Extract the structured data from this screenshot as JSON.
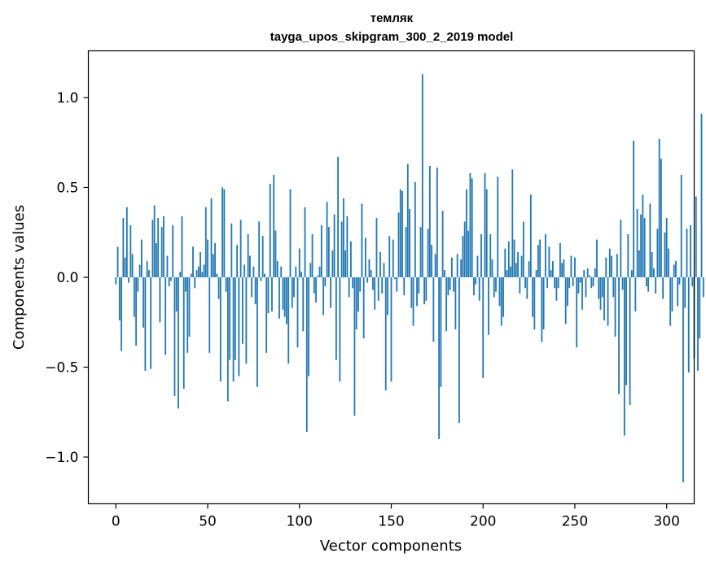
{
  "chart_data": {
    "type": "bar",
    "title_line1": "темляк",
    "title_line2": "tayga_upos_skipgram_300_2_2019 model",
    "xlabel": "Vector components",
    "ylabel": "Components values",
    "xlim": [
      -15,
      315
    ],
    "ylim": [
      -1.26,
      1.26
    ],
    "xticks": [
      0,
      50,
      100,
      150,
      200,
      250,
      300
    ],
    "xtick_labels": [
      "0",
      "50",
      "100",
      "150",
      "200",
      "250",
      "300"
    ],
    "yticks": [
      -1.0,
      -0.5,
      0.0,
      0.5,
      1.0
    ],
    "ytick_labels": [
      "−1.0",
      "−0.5",
      "0.0",
      "0.5",
      "1.0"
    ],
    "bar_color": "#1f77b4",
    "grid": false,
    "values": [
      -0.04,
      0.17,
      -0.24,
      -0.41,
      0.33,
      0.11,
      0.39,
      -0.03,
      0.29,
      0.13,
      -0.22,
      -0.38,
      -0.08,
      0.07,
      0.21,
      -0.28,
      -0.52,
      0.09,
      0.04,
      -0.51,
      0.32,
      0.4,
      0.19,
      0.33,
      -0.25,
      0.28,
      0.34,
      -0.43,
      0.12,
      -0.05,
      -0.02,
      0.29,
      -0.66,
      -0.19,
      -0.73,
      0.03,
      0.34,
      -0.62,
      -0.08,
      -0.42,
      -0.33,
      0.02,
      0.17,
      -0.06,
      0.04,
      0.06,
      0.14,
      0.03,
      0.07,
      0.39,
      0.21,
      -0.42,
      0.44,
      0.13,
      0.19,
      0.02,
      -0.12,
      -0.58,
      0.5,
      0.49,
      -0.08,
      -0.69,
      -0.46,
      0.3,
      -0.58,
      -0.46,
      0.18,
      -0.55,
      0.32,
      -0.37,
      0.07,
      -0.48,
      0.24,
      0.12,
      -0.11,
      0.06,
      -0.15,
      -0.61,
      0.31,
      -0.02,
      0.23,
      0.02,
      -0.42,
      -0.2,
      0.52,
      -0.19,
      0.57,
      0.26,
      0.09,
      -0.23,
      0.06,
      -0.18,
      -0.22,
      -0.26,
      -0.48,
      0.49,
      -0.17,
      -0.11,
      0.06,
      -0.39,
      0.16,
      0.03,
      -0.3,
      0.39,
      -0.86,
      -0.55,
      0.08,
      0.24,
      -0.09,
      -0.14,
      0.01,
      0.06,
      0.29,
      -0.21,
      -0.05,
      0.42,
      0.28,
      -0.17,
      0.15,
      0.35,
      -0.46,
      0.67,
      -0.58,
      0.31,
      0.44,
      0.15,
      0.34,
      -0.11,
      0.2,
      -0.06,
      -0.77,
      -0.29,
      -0.19,
      -0.08,
      0.41,
      -0.34,
      0.22,
      -0.03,
      0.1,
      0.04,
      -0.07,
      -0.18,
      0.33,
      -0.13,
      0.14,
      -0.09,
      0.08,
      -0.63,
      -0.21,
      0.23,
      -0.58,
      0.21,
      -0.01,
      -0.08,
      0.36,
      0.49,
      0.48,
      -0.1,
      0.28,
      0.63,
      0.38,
      -0.17,
      -0.27,
      0.53,
      -0.16,
      -0.09,
      0.28,
      1.13,
      -0.15,
      -0.13,
      0.27,
      0.62,
      0.18,
      -0.36,
      0.13,
      0.61,
      -0.9,
      -0.61,
      0.37,
      0.04,
      -0.3,
      -0.1,
      -0.07,
      0.11,
      -0.08,
      -0.29,
      0.13,
      -0.81,
      0.1,
      0.23,
      0.31,
      0.49,
      0.26,
      0.58,
      0.55,
      -0.1,
      -0.04,
      0.12,
      -0.13,
      0.24,
      -0.56,
      0.58,
      0.49,
      -0.32,
      0.24,
      0.1,
      -0.11,
      -0.08,
      0.56,
      -0.16,
      -0.27,
      -0.22,
      0.16,
      0.04,
      0.2,
      0.06,
      0.6,
      0.21,
      0.08,
      0.14,
      -0.09,
      0.12,
      0.31,
      -0.06,
      -0.12,
      0.09,
      0.46,
      -0.22,
      -0.29,
      0.04,
      0.18,
      0.21,
      -0.36,
      -0.29,
      0.24,
      -0.06,
      0.17,
      0.04,
      0.09,
      -0.06,
      -0.13,
      -0.06,
      0.19,
      0.08,
      0.1,
      -0.26,
      -0.16,
      -0.06,
      0.12,
      -0.05,
      0.11,
      -0.39,
      -0.09,
      -0.03,
      -0.18,
      0.04,
      -0.11,
      0.05,
      0.01,
      -0.06,
      -0.05,
      0.05,
      0.21,
      -0.12,
      -0.18,
      -0.11,
      -0.24,
      0.11,
      -0.27,
      0.16,
      0.12,
      -0.11,
      -0.33,
      0.13,
      -0.65,
      0.32,
      -0.07,
      -0.88,
      -0.6,
      0.24,
      -0.71,
      0.04,
      0.76,
      -0.19,
      0.38,
      0.15,
      0.35,
      0.46,
      0.33,
      -0.05,
      -0.08,
      0.41,
      0.14,
      0.05,
      -0.09,
      0.27,
      0.77,
      0.66,
      -0.12,
      0.25,
      0.33,
      0.16,
      -0.27,
      -0.19,
      0.07,
      0.09,
      -0.16,
      -0.04,
      0.57,
      -1.14,
      -0.17,
      0.27,
      -0.53,
      0.29,
      -0.05,
      -0.45,
      0.45,
      -0.52,
      -0.34,
      0.91,
      -0.11
    ]
  }
}
